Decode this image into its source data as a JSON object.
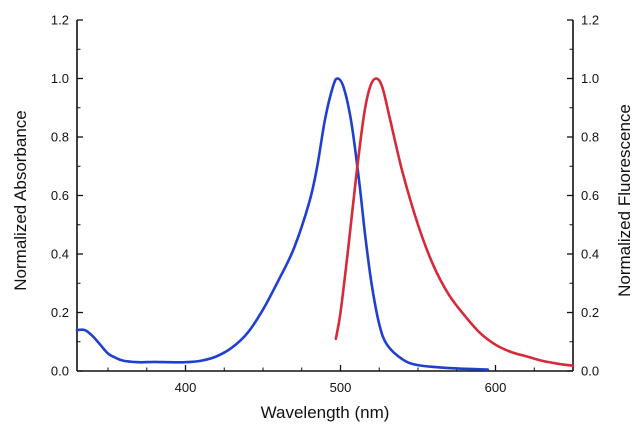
{
  "chart_data": {
    "type": "line",
    "title": "",
    "xlabel": "Wavelength (nm)",
    "ylabel_left": "Normalized Absorbance",
    "ylabel_right": "Normalized Fluorescence",
    "xlim": [
      330,
      650
    ],
    "ylim_left": [
      0.0,
      1.2
    ],
    "ylim_right": [
      0.0,
      1.2
    ],
    "x_ticks": [
      400,
      500,
      600
    ],
    "y_ticks": [
      "0.0",
      "0.2",
      "0.4",
      "0.6",
      "0.8",
      "1.0",
      "1.2"
    ],
    "grid": false,
    "legend": "none",
    "series": [
      {
        "axis": "left",
        "color": "#1f3fd1",
        "points": [
          [
            330,
            0.14
          ],
          [
            335,
            0.14
          ],
          [
            340,
            0.12
          ],
          [
            345,
            0.09
          ],
          [
            350,
            0.06
          ],
          [
            355,
            0.045
          ],
          [
            360,
            0.035
          ],
          [
            370,
            0.03
          ],
          [
            380,
            0.031
          ],
          [
            390,
            0.03
          ],
          [
            400,
            0.03
          ],
          [
            410,
            0.035
          ],
          [
            420,
            0.05
          ],
          [
            430,
            0.08
          ],
          [
            440,
            0.13
          ],
          [
            450,
            0.21
          ],
          [
            460,
            0.31
          ],
          [
            470,
            0.42
          ],
          [
            480,
            0.58
          ],
          [
            485,
            0.7
          ],
          [
            490,
            0.86
          ],
          [
            495,
            0.97
          ],
          [
            498,
            1.0
          ],
          [
            502,
            0.97
          ],
          [
            507,
            0.85
          ],
          [
            512,
            0.65
          ],
          [
            516,
            0.46
          ],
          [
            520,
            0.3
          ],
          [
            525,
            0.16
          ],
          [
            530,
            0.09
          ],
          [
            540,
            0.04
          ],
          [
            550,
            0.02
          ],
          [
            570,
            0.01
          ],
          [
            595,
            0.005
          ]
        ]
      },
      {
        "axis": "right",
        "color": "#d62a3a",
        "points": [
          [
            497,
            0.11
          ],
          [
            500,
            0.2
          ],
          [
            505,
            0.42
          ],
          [
            510,
            0.66
          ],
          [
            515,
            0.87
          ],
          [
            519,
            0.97
          ],
          [
            523,
            1.0
          ],
          [
            527,
            0.97
          ],
          [
            532,
            0.86
          ],
          [
            540,
            0.68
          ],
          [
            550,
            0.5
          ],
          [
            560,
            0.36
          ],
          [
            570,
            0.26
          ],
          [
            580,
            0.19
          ],
          [
            590,
            0.13
          ],
          [
            600,
            0.09
          ],
          [
            610,
            0.065
          ],
          [
            620,
            0.05
          ],
          [
            630,
            0.035
          ],
          [
            640,
            0.025
          ],
          [
            650,
            0.018
          ]
        ]
      }
    ]
  }
}
